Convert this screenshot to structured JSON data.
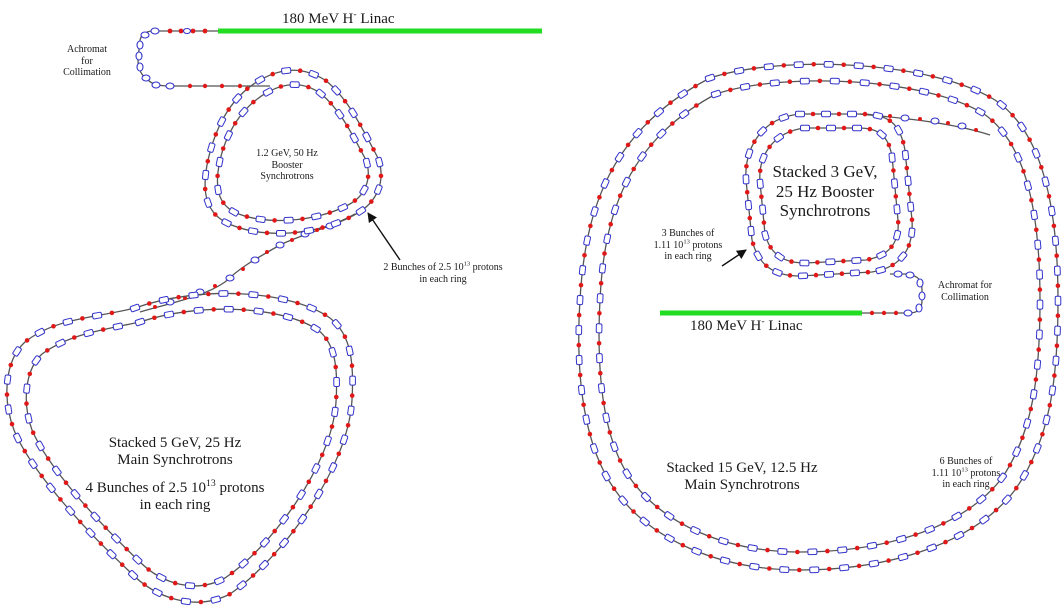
{
  "colors": {
    "linac": "#22dd22",
    "beamline": "#555555",
    "magnet_outline": "#3333cc",
    "bunch_dot": "#e01818",
    "background": "#ffffff"
  },
  "left": {
    "linac_label_prefix": "180 MeV H",
    "linac_label_sup": "-",
    "linac_label_suffix": " Linac",
    "achromat_label": [
      "Achromat",
      "for",
      "Collimation"
    ],
    "booster_label": [
      "1.2 GeV, 50 Hz",
      "Booster",
      "Synchrotrons"
    ],
    "booster_bunches_prefix": "2 Bunches of 2.5 10",
    "booster_bunches_sup": "13",
    "booster_bunches_suffix": " protons",
    "booster_bunches_line2": "in each ring",
    "main_label": [
      "Stacked 5 GeV, 25 Hz",
      "Main Synchrotrons"
    ],
    "main_bunches_prefix": "4 Bunches of 2.5 10",
    "main_bunches_sup": "13",
    "main_bunches_suffix": " protons",
    "main_bunches_line2": "in each ring"
  },
  "right": {
    "booster_label": [
      "Stacked 3 GeV,",
      "25 Hz Booster",
      "Synchrotrons"
    ],
    "booster_bunches_line1": "3 Bunches of",
    "booster_bunches_prefix": "1.11 10",
    "booster_bunches_sup": "13",
    "booster_bunches_suffix": " protons",
    "booster_bunches_line3": "in each ring",
    "achromat_label": [
      "Achromat for",
      "Collimation"
    ],
    "linac_label_prefix": "180 MeV H",
    "linac_label_sup": "-",
    "linac_label_suffix": " Linac",
    "main_label": [
      "Stacked 15 GeV, 12.5 Hz",
      "Main Synchrotrons"
    ],
    "main_bunches_line1": "6 Bunches of",
    "main_bunches_prefix": "1.11 10",
    "main_bunches_sup": "13",
    "main_bunches_suffix": " protons",
    "main_bunches_line3": "in each ring"
  }
}
